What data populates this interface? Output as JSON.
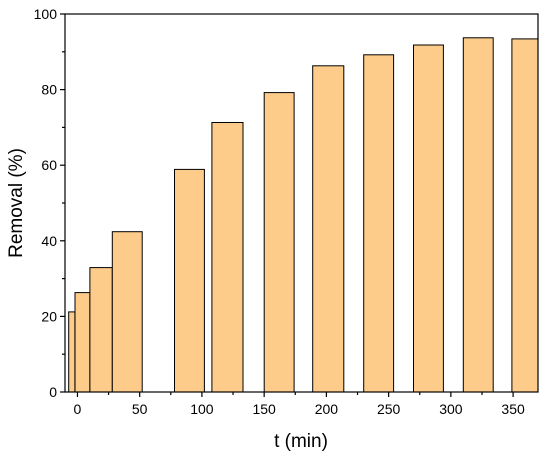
{
  "chart_data": {
    "type": "bar",
    "title": "",
    "xlabel": "t (min)",
    "ylabel": "Removal (%)",
    "xlim": [
      -10,
      370
    ],
    "ylim": [
      0,
      100
    ],
    "xticks": [
      0,
      50,
      100,
      150,
      200,
      250,
      300,
      350
    ],
    "yticks": [
      0,
      20,
      40,
      60,
      80,
      100
    ],
    "grid": false,
    "legend": "none",
    "bar_color": "#FDCC8A",
    "edge_color": "#000000",
    "bars": [
      {
        "x_start": -7,
        "x_end": -2,
        "value": 21.2
      },
      {
        "x_start": -2,
        "x_end": 10,
        "value": 26.3
      },
      {
        "x_start": 10,
        "x_end": 28,
        "value": 32.9
      },
      {
        "x_start": 28,
        "x_end": 52,
        "value": 42.4
      },
      {
        "x_start": 78,
        "x_end": 102,
        "value": 58.9
      },
      {
        "x_start": 108,
        "x_end": 133,
        "value": 71.3
      },
      {
        "x_start": 150,
        "x_end": 174,
        "value": 79.2
      },
      {
        "x_start": 189,
        "x_end": 214,
        "value": 86.3
      },
      {
        "x_start": 230,
        "x_end": 254,
        "value": 89.2
      },
      {
        "x_start": 270,
        "x_end": 294,
        "value": 91.8
      },
      {
        "x_start": 310,
        "x_end": 334,
        "value": 93.7
      },
      {
        "x_start": 349,
        "x_end": 373,
        "value": 93.4
      }
    ]
  }
}
